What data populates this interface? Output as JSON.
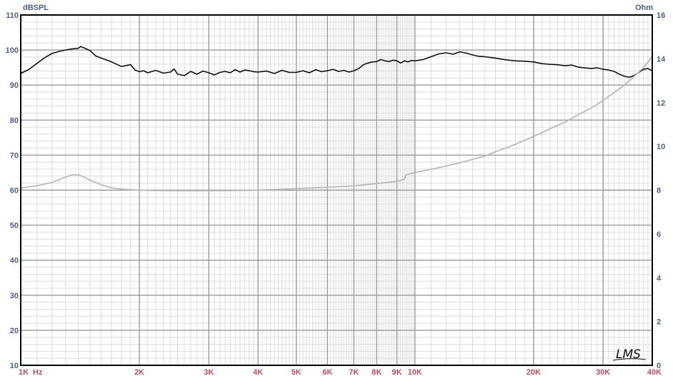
{
  "chart_data": {
    "type": "line",
    "title": "",
    "left_axis": {
      "label": "dBSPL",
      "range": [
        10,
        110
      ],
      "ticks": [
        "110",
        "100",
        "90",
        "80",
        "70",
        "60",
        "50",
        "40",
        "30",
        "20",
        "10"
      ]
    },
    "right_axis": {
      "label": "Ohm",
      "range": [
        0,
        16
      ],
      "ticks": [
        "16",
        "14",
        "12",
        "10",
        "8",
        "6",
        "4",
        "2",
        "0"
      ]
    },
    "x_axis": {
      "scale": "log",
      "unit": "Hz",
      "range": [
        1000,
        40000
      ],
      "ticks": [
        {
          "value": 1000,
          "label": "1K"
        },
        {
          "value": 2000,
          "label": "2K"
        },
        {
          "value": 3000,
          "label": "3K"
        },
        {
          "value": 4000,
          "label": "4K"
        },
        {
          "value": 5000,
          "label": "5K"
        },
        {
          "value": 6000,
          "label": "6K"
        },
        {
          "value": 7000,
          "label": "7K"
        },
        {
          "value": 8000,
          "label": "8K"
        },
        {
          "value": 9000,
          "label": "9K"
        },
        {
          "value": 10000,
          "label": "10K"
        },
        {
          "value": 20000,
          "label": "20K"
        },
        {
          "value": 30000,
          "label": "30K"
        },
        {
          "value": 40000,
          "label": "40K"
        }
      ]
    },
    "grid": true,
    "series": [
      {
        "axis": "left",
        "color": "#111111",
        "x": [
          1000,
          1050,
          1100,
          1150,
          1200,
          1250,
          1300,
          1350,
          1400,
          1420,
          1450,
          1500,
          1550,
          1600,
          1700,
          1800,
          1900,
          1950,
          2000,
          2050,
          2100,
          2200,
          2300,
          2400,
          2450,
          2500,
          2600,
          2700,
          2800,
          2900,
          3000,
          3100,
          3200,
          3300,
          3400,
          3500,
          3600,
          3700,
          3800,
          3900,
          4000,
          4200,
          4400,
          4600,
          4800,
          5000,
          5200,
          5400,
          5600,
          5800,
          6000,
          6200,
          6400,
          6600,
          6800,
          7000,
          7200,
          7400,
          7600,
          7800,
          8000,
          8200,
          8400,
          8600,
          8800,
          9000,
          9200,
          9400,
          9600,
          9800,
          10000,
          10500,
          11000,
          11500,
          12000,
          12500,
          13000,
          13500,
          14000,
          14500,
          15000,
          16000,
          17000,
          18000,
          19000,
          20000,
          21000,
          22000,
          23000,
          24000,
          25000,
          26000,
          27000,
          28000,
          29000,
          30000,
          31000,
          32000,
          33000,
          34000,
          35000,
          36000,
          37000,
          38000,
          39000,
          40000
        ],
        "y": [
          93.3,
          94.5,
          96.2,
          97.8,
          99,
          99.6,
          100,
          100.3,
          100.5,
          101,
          100.6,
          99.8,
          98.3,
          97.7,
          96.6,
          95.3,
          95.8,
          94.3,
          93.8,
          94.1,
          93.5,
          94.2,
          93.4,
          93.7,
          94.6,
          93.1,
          92.7,
          93.9,
          93.1,
          94,
          93.5,
          92.9,
          93.6,
          93.9,
          93.5,
          94.4,
          93.7,
          94.3,
          94.1,
          93.8,
          93.7,
          94,
          93.3,
          94.2,
          93.6,
          93.6,
          94.1,
          93.5,
          94.4,
          93.8,
          94.1,
          94.5,
          93.9,
          94.2,
          93.7,
          94.1,
          94.7,
          95.8,
          96.3,
          96.6,
          96.7,
          97.3,
          96.9,
          96.7,
          97.1,
          96.9,
          96.3,
          96.9,
          96.6,
          97,
          96.9,
          97.3,
          98.1,
          98.9,
          99.2,
          98.8,
          99.5,
          99.1,
          98.6,
          98.2,
          98.1,
          97.7,
          97.2,
          96.9,
          96.8,
          96.6,
          96.1,
          95.9,
          95.8,
          95.5,
          95.7,
          95.1,
          94.9,
          94.7,
          94.9,
          94.5,
          94.3,
          93.9,
          93.1,
          92.5,
          92.2,
          92.8,
          93.6,
          94.5,
          94.7,
          94.1
        ]
      },
      {
        "axis": "right",
        "color": "#b9b9b9",
        "x": [
          1000,
          1100,
          1200,
          1300,
          1350,
          1400,
          1450,
          1500,
          1600,
          1700,
          1800,
          1900,
          2000,
          2200,
          2500,
          3000,
          3500,
          4000,
          5000,
          6000,
          7000,
          8000,
          9000,
          9400,
          9500,
          10000,
          11000,
          12000,
          13000,
          14000,
          15000,
          16000,
          18000,
          20000,
          22000,
          24000,
          26000,
          28000,
          30000,
          32000,
          34000,
          36000,
          38000,
          40000
        ],
        "y": [
          8.1,
          8.2,
          8.35,
          8.6,
          8.7,
          8.7,
          8.6,
          8.45,
          8.25,
          8.1,
          8.05,
          8.02,
          8,
          7.98,
          7.97,
          7.97,
          7.98,
          8,
          8.07,
          8.13,
          8.2,
          8.3,
          8.4,
          8.5,
          8.7,
          8.8,
          8.95,
          9.1,
          9.25,
          9.4,
          9.55,
          9.75,
          10.1,
          10.45,
          10.8,
          11.1,
          11.45,
          11.75,
          12.1,
          12.45,
          12.8,
          13.2,
          13.6,
          14.1
        ]
      }
    ],
    "annotations": [
      "LMS"
    ]
  }
}
